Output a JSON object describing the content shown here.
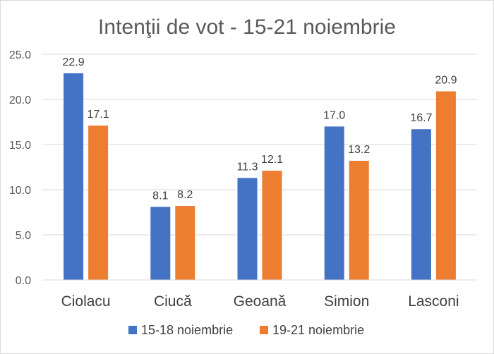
{
  "chart_data": {
    "type": "bar",
    "title": "Intenţii de vot - 15-21 noiembrie",
    "categories": [
      "Ciolacu",
      "Ciucă",
      "Geoană",
      "Simion",
      "Lasconi"
    ],
    "series": [
      {
        "name": "15-18 noiembrie",
        "values": [
          22.9,
          8.1,
          11.3,
          17.0,
          16.7
        ],
        "labels": [
          "22.9",
          "8.1",
          "11.3",
          "17.0",
          "16.7"
        ],
        "color": "#4472C4"
      },
      {
        "name": "19-21 noiembrie",
        "values": [
          17.1,
          8.2,
          12.1,
          13.2,
          20.9
        ],
        "labels": [
          "17.1",
          "8.2",
          "12.1",
          "13.2",
          "20.9"
        ],
        "color": "#ED7D31"
      }
    ],
    "yticks": [
      "0.0",
      "5.0",
      "10.0",
      "15.0",
      "20.0",
      "25.0"
    ],
    "ylim": [
      0,
      25
    ],
    "grid": true,
    "legend": "bottom"
  }
}
